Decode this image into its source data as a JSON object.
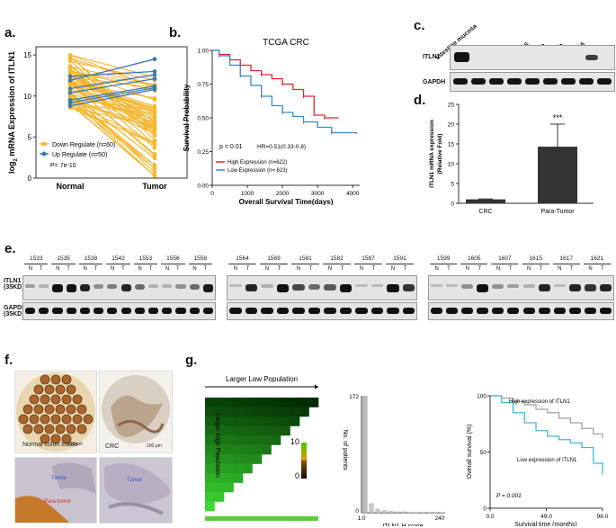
{
  "panels": {
    "a": {
      "letter": "a.",
      "ylabel_prefix": "log",
      "ylabel_sub": "2",
      "ylabel_rest": " mRNA Expression of ITLN1",
      "yticks": [
        "15",
        "10",
        "5",
        "0"
      ],
      "x_normal": "Normal",
      "x_tumor": "Tumor",
      "legend_down": "Down Regulate (n=60)",
      "legend_up": "Up Regulate (n=50)",
      "p_text": "P= 7e-10",
      "colors": {
        "down": "#f5b730",
        "up": "#3d78b5"
      }
    },
    "b": {
      "letter": "b.",
      "title": "TCGA CRC",
      "ylabel": "Survival Probability",
      "xlabel": "Overall Survival Time(days)",
      "yticks": [
        "1.00",
        "0.75",
        "0.50",
        "0.25",
        "0.00"
      ],
      "xticks": [
        "0",
        "1000",
        "2000",
        "3000",
        "4000"
      ],
      "stats": "p = 0.01",
      "hr": "HR=0.51(0.33-0.8)",
      "legend_high": "High Expression (n=622)",
      "legend_low": "Low Expression (n= 623)",
      "colors": {
        "high": "#e0262b",
        "low": "#3b86c7"
      }
    },
    "c": {
      "letter": "c.",
      "lanes": [
        "Intestine mucosa",
        "RKO",
        "LoVo",
        "HT29",
        "HCT116",
        "SW480",
        "SW620",
        "SW1116",
        "CT26"
      ],
      "row1": "ITLN1",
      "row2": "GAPDH"
    },
    "d": {
      "letter": "d.",
      "ylabel1": "ITLN1 mRNA expression",
      "ylabel2": "(Relative Fold)",
      "yticks": [
        "25",
        "20",
        "15",
        "10",
        "5",
        "0"
      ],
      "categories": [
        "CRC",
        "Para-Tumor"
      ],
      "sig": "***"
    },
    "e": {
      "letter": "e.",
      "row1_line1": "ITLN1",
      "row1_line2": "(35KD)",
      "row2_line1": "GAPDH",
      "row2_line2": "(35KD)",
      "n_label": "N",
      "t_label": "T",
      "group1": [
        "1533",
        "1535",
        "1538",
        "1542",
        "1553",
        "1556",
        "1558"
      ],
      "group2": [
        "1564",
        "1569",
        "1581",
        "1582",
        "1587",
        "1591"
      ],
      "group3": [
        "1599",
        "1605",
        "1607",
        "1615",
        "1617",
        "1621"
      ]
    },
    "f": {
      "letter": "f.",
      "normal_label": "Normal colon tissue",
      "crc_label": "CRC",
      "scale": "100 μm",
      "tumor1": "Tumor",
      "para_tumor": "Para-tumor",
      "tumor2": "Tumor"
    },
    "g": {
      "letter": "g.",
      "heat_top": "Larger Low Population",
      "heat_left": "Larger High Population",
      "cbar_max": "10",
      "cbar_min": "0",
      "hist_ylabel": "No. of patients",
      "hist_ymax": "172",
      "hist_ymin": "0",
      "hist_xlabel": "ITLN1 H score",
      "hist_xmin": "1.0",
      "hist_xmax": "240",
      "km_ylabel": "Overall survival (%)",
      "km_xlabel": "Survival time (months)",
      "km_yticks": [
        "100",
        "50",
        "0"
      ],
      "km_xticks": [
        "0.0",
        "49.0",
        "98.0"
      ],
      "km_high": "High expression of ITLN1",
      "km_low": "Low expression of ITLN1",
      "km_p": "P = 0.001"
    }
  },
  "chart_data": [
    {
      "id": "d",
      "type": "bar",
      "categories": [
        "CRC",
        "Para-Tumor"
      ],
      "values": [
        1.0,
        14.3
      ],
      "errors": [
        0.1,
        5.7
      ],
      "ylabel": "ITLN1 mRNA expression (Relative Fold)",
      "ylim": [
        0,
        25
      ],
      "annotation": "***"
    },
    {
      "id": "b",
      "type": "line",
      "title": "TCGA CRC",
      "xlabel": "Overall Survival Time(days)",
      "ylabel": "Survival Probability",
      "xlim": [
        0,
        4200
      ],
      "ylim": [
        0,
        1
      ],
      "series": [
        {
          "name": "High Expression (n=622)",
          "x": [
            0,
            200,
            500,
            800,
            1100,
            1400,
            1700,
            2000,
            2300,
            2600,
            2900,
            3200,
            3600
          ],
          "values": [
            1.0,
            0.97,
            0.93,
            0.89,
            0.85,
            0.82,
            0.79,
            0.75,
            0.71,
            0.66,
            0.52,
            0.5,
            0.5
          ]
        },
        {
          "name": "Low Expression (n= 623)",
          "x": [
            0,
            200,
            500,
            800,
            1100,
            1400,
            1700,
            2000,
            2300,
            2600,
            3000,
            3400,
            4100
          ],
          "values": [
            1.0,
            0.96,
            0.89,
            0.81,
            0.74,
            0.66,
            0.59,
            0.54,
            0.51,
            0.47,
            0.43,
            0.39,
            0.38
          ]
        }
      ]
    },
    {
      "id": "g-km",
      "type": "line",
      "xlabel": "Survival time (months)",
      "ylabel": "Overall survival (%)",
      "xlim": [
        0,
        98
      ],
      "ylim": [
        0,
        100
      ],
      "series": [
        {
          "name": "High expression of ITLN1",
          "x": [
            0,
            10,
            20,
            30,
            40,
            50,
            60,
            70,
            80,
            90,
            98
          ],
          "values": [
            100,
            98,
            95,
            92,
            88,
            85,
            80,
            76,
            71,
            66,
            62
          ]
        },
        {
          "name": "Low expression of ITLN1",
          "x": [
            0,
            10,
            20,
            30,
            40,
            50,
            60,
            70,
            80,
            90,
            98
          ],
          "values": [
            100,
            94,
            85,
            76,
            69,
            64,
            61,
            58,
            54,
            40,
            30
          ]
        }
      ]
    },
    {
      "id": "g-hist",
      "type": "bar",
      "xlabel": "ITLN1 H score",
      "ylabel": "No. of patients",
      "ylim": [
        0,
        172
      ],
      "categories": [
        "1",
        "20",
        "40",
        "60",
        "80",
        "100",
        "120",
        "140",
        "160",
        "180",
        "200",
        "220",
        "240"
      ],
      "values": [
        172,
        14,
        6,
        4,
        3,
        2,
        2,
        1,
        1,
        1,
        1,
        1,
        1
      ]
    }
  ]
}
